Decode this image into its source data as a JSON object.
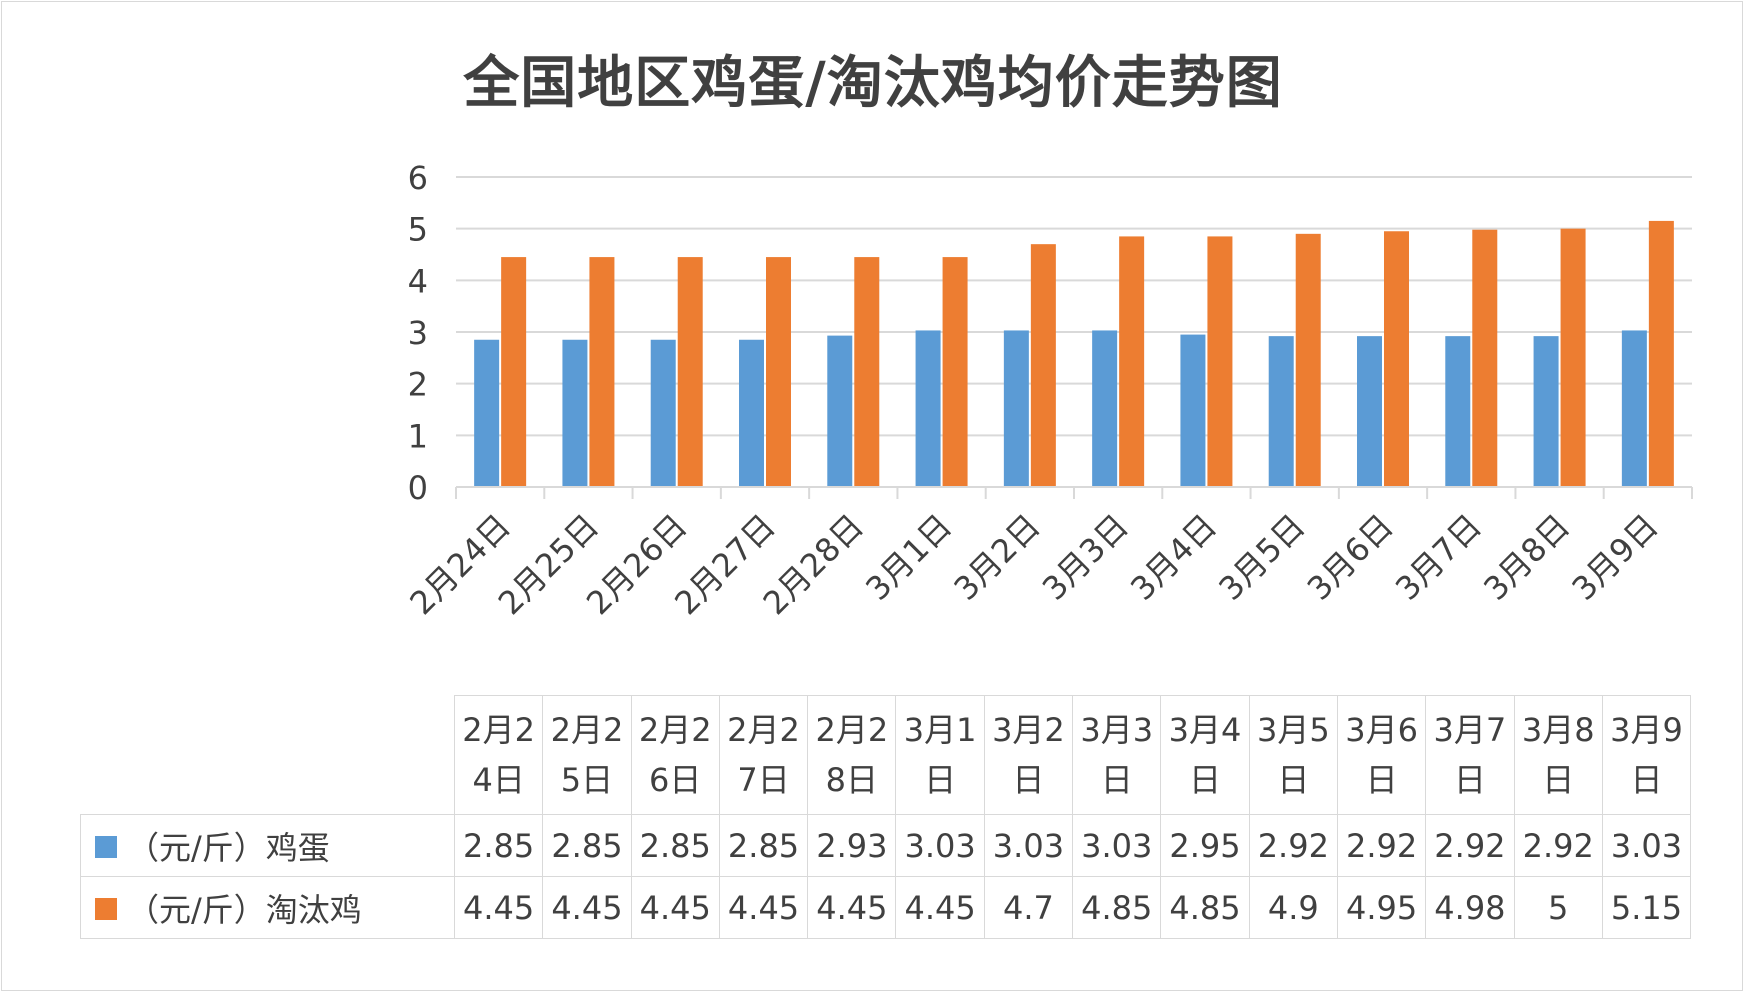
{
  "title": "全国地区鸡蛋/淘汰鸡均价走势图",
  "colors": {
    "series1": "#5b9bd5",
    "series2": "#ed7d31",
    "grid": "#d9d9d9",
    "text": "#404040"
  },
  "chart_data": {
    "type": "bar",
    "title": "全国地区鸡蛋/淘汰鸡均价走势图",
    "categories": [
      "2月24日",
      "2月25日",
      "2月26日",
      "2月27日",
      "2月28日",
      "3月1日",
      "3月2日",
      "3月3日",
      "3月4日",
      "3月5日",
      "3月6日",
      "3月7日",
      "3月8日",
      "3月9日"
    ],
    "series": [
      {
        "name": "（元/斤）鸡蛋",
        "values": [
          2.85,
          2.85,
          2.85,
          2.85,
          2.93,
          3.03,
          3.03,
          3.03,
          2.95,
          2.92,
          2.92,
          2.92,
          2.92,
          3.03
        ]
      },
      {
        "name": "（元/斤）淘汰鸡",
        "values": [
          4.45,
          4.45,
          4.45,
          4.45,
          4.45,
          4.45,
          4.7,
          4.85,
          4.85,
          4.9,
          4.95,
          4.98,
          5,
          5.15
        ]
      }
    ],
    "value_labels": [
      [
        "2.85",
        "2.85",
        "2.85",
        "2.85",
        "2.93",
        "3.03",
        "3.03",
        "3.03",
        "2.95",
        "2.92",
        "2.92",
        "2.92",
        "2.92",
        "3.03"
      ],
      [
        "4.45",
        "4.45",
        "4.45",
        "4.45",
        "4.45",
        "4.45",
        "4.7",
        "4.85",
        "4.85",
        "4.9",
        "4.95",
        "4.98",
        "5",
        "5.15"
      ]
    ],
    "ylim": [
      0,
      6
    ],
    "yticks": [
      "0",
      "1",
      "2",
      "3",
      "4",
      "5",
      "6"
    ],
    "grid": true,
    "legend": "bottom data table"
  },
  "table": {
    "series_labels": [
      "（元/斤）鸡蛋",
      "（元/斤）淘汰鸡"
    ]
  }
}
